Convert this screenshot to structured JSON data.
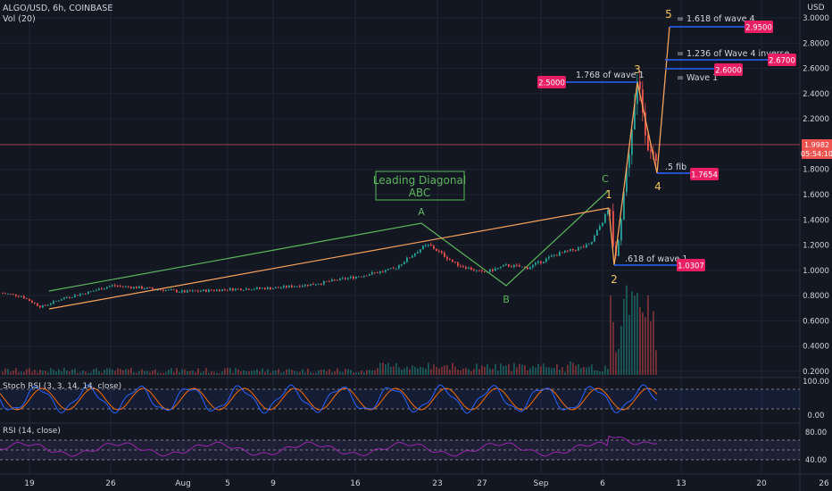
{
  "header": {
    "symbol_line": "ALGO/USD, 6h, COINBASE",
    "vol_line": "Vol (20)"
  },
  "price_axis": {
    "currency": "USD",
    "ticks": [
      "3.0000",
      "2.8000",
      "2.6000",
      "2.4000",
      "2.2000",
      "2.0000",
      "1.8000",
      "1.6000",
      "1.4000",
      "1.2000",
      "1.0000",
      "0.8000",
      "0.6000",
      "0.4000",
      "0.2000"
    ],
    "last_price": "1.9982",
    "countdown": "05:54:10"
  },
  "time_axis": {
    "ticks": [
      "19",
      "26",
      "Aug",
      "5",
      "9",
      "16",
      "23",
      "27",
      "Sep",
      "6",
      "13",
      "20",
      "26"
    ]
  },
  "stoch": {
    "label": "Stoch RSI (3, 3, 14, 14, close)",
    "ticks": [
      "100.00",
      "0.00"
    ]
  },
  "rsi": {
    "label": "RSI (14, close)",
    "ticks": [
      "80.00",
      "40.00"
    ]
  },
  "annotations": {
    "leading_diagonal_1": "Leading Diagonal",
    "leading_diagonal_2": "ABC",
    "A": "A",
    "B": "B",
    "C": "C",
    "w1": "1",
    "w2": "2",
    "w3": "3",
    "w4": "4",
    "w5": "5",
    "fib_1618_w4": "= 1.618 of wave 4",
    "fib_1236_w4": "= 1.236 of Wave 4 inverse",
    "fib_eq_w1": "= Wave 1",
    "fib_1768_w1": "1.768 of wave 1",
    "fib_5": ".5 fib",
    "fib_618_w1": ".618 of wave 1"
  },
  "badges": {
    "b2950": "2.9500",
    "b2670": "2.6700",
    "b2600": "2.6000",
    "b2500": "2.5000",
    "b1765": "1.7654",
    "b1030": "1.0307"
  },
  "colors": {
    "background": "#131722",
    "up": "#26a69a",
    "down": "#ef5350",
    "badge": "#e91e63",
    "fib_line": "#2962ff",
    "wave_orange": "#f7a35c",
    "abc_green": "#5bb75b",
    "stoch_k": "#2962ff",
    "stoch_d": "#ff6d00",
    "rsi_line": "#9c27b0"
  },
  "chart_data": {
    "type": "candlestick",
    "series": [
      {
        "name": "ALGO/USD",
        "x": [
          "Jul 15",
          "Jul 17",
          "Jul 19",
          "Jul 21",
          "Jul 23",
          "Jul 26",
          "Jul 29",
          "Aug 1",
          "Aug 5",
          "Aug 9",
          "Aug 13",
          "Aug 16",
          "Aug 19",
          "Aug 22",
          "Aug 23",
          "Aug 25",
          "Aug 27",
          "Aug 30",
          "Sep 1",
          "Sep 3",
          "Sep 5",
          "Sep 6",
          "Sep 7",
          "Sep 8",
          "Sep 9",
          "Sep 10",
          "Sep 11"
        ],
        "values": [
          0.82,
          0.8,
          0.71,
          0.78,
          0.83,
          0.88,
          0.86,
          0.83,
          0.85,
          0.86,
          0.89,
          0.95,
          1.01,
          1.18,
          1.2,
          1.05,
          0.98,
          1.04,
          1.02,
          1.12,
          1.2,
          1.5,
          1.04,
          1.85,
          2.5,
          1.96,
          1.77
        ]
      }
    ],
    "ylim": [
      0.15,
      3.07
    ],
    "annotations": [
      {
        "label": "5",
        "value": 2.95
      },
      {
        "label": "3",
        "value": 2.5
      },
      {
        "label": "1",
        "value": 1.5
      },
      {
        "label": "2",
        "value": 1.0307
      },
      {
        "label": "4",
        "value": 1.7654
      }
    ]
  }
}
